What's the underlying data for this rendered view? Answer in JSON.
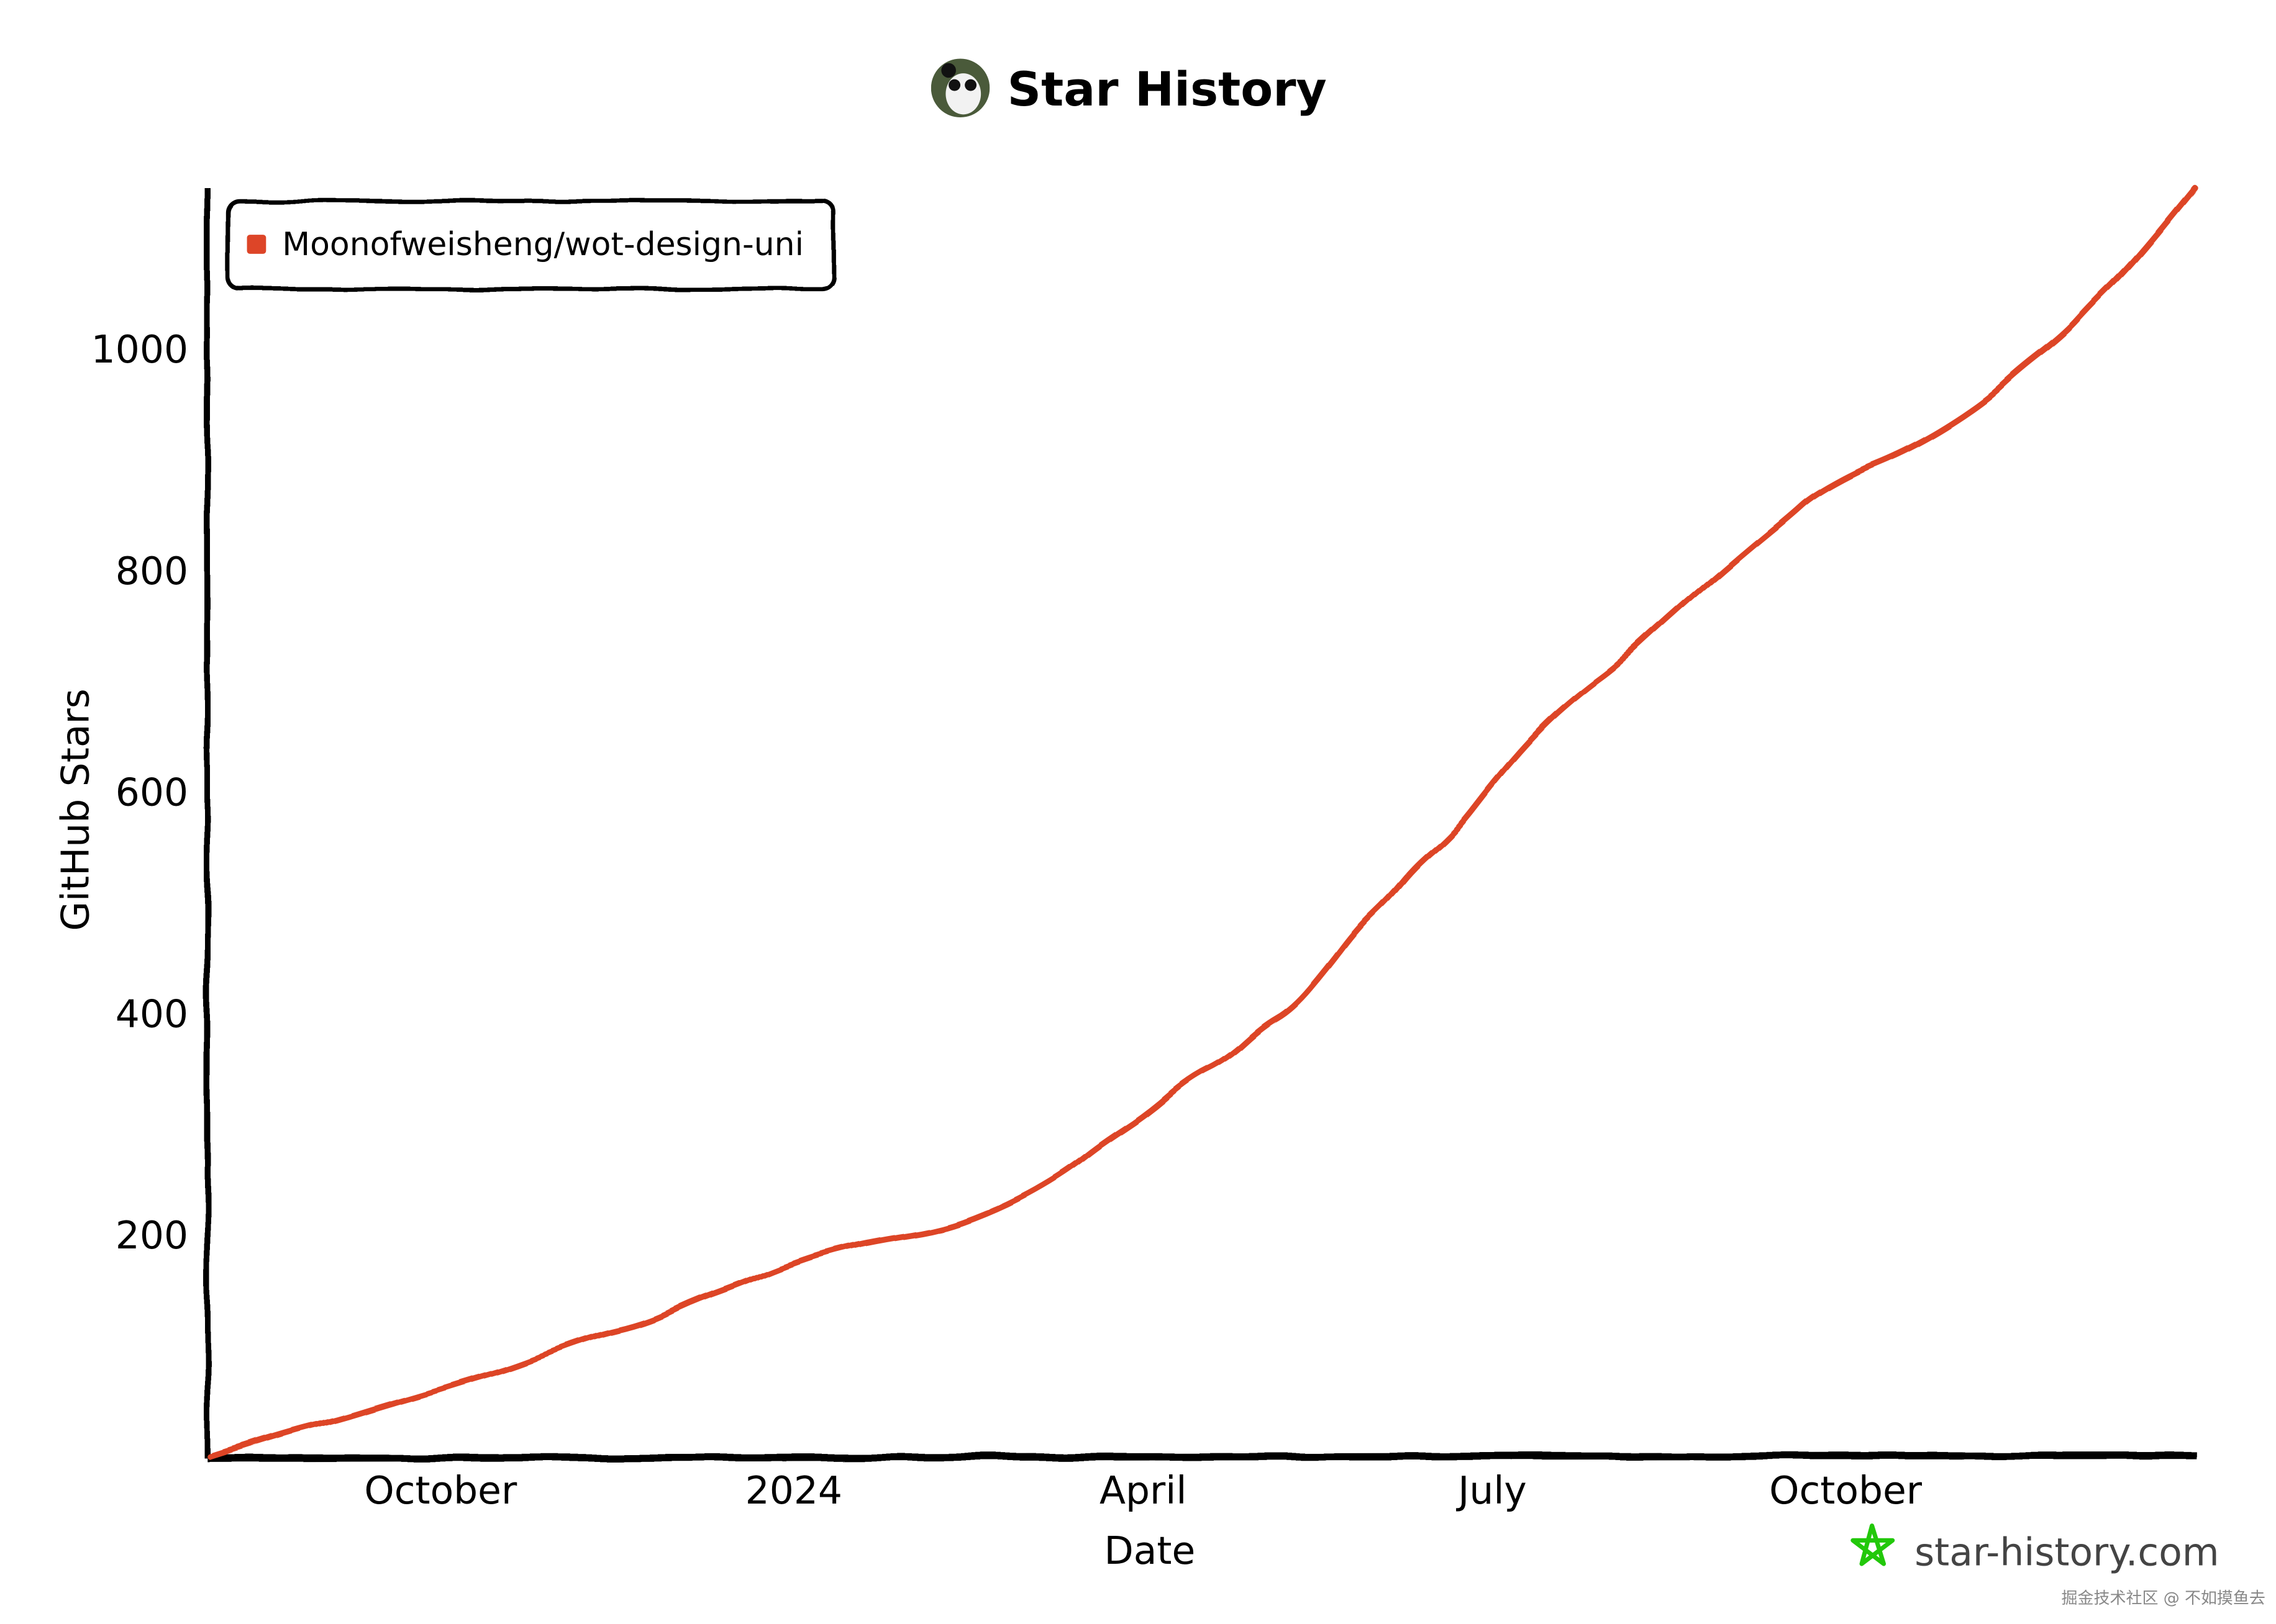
{
  "chart_data": {
    "type": "line",
    "title": "Star History",
    "xlabel": "Date",
    "ylabel": "GitHub Stars",
    "x_tick_labels": [
      {
        "date": "2023-10-01",
        "label": "October"
      },
      {
        "date": "2024-01-01",
        "label": "2024"
      },
      {
        "date": "2024-04-01",
        "label": "April"
      },
      {
        "date": "2024-07-01",
        "label": "July"
      },
      {
        "date": "2024-10-01",
        "label": "October"
      }
    ],
    "y_ticks": [
      200,
      400,
      600,
      800,
      1000
    ],
    "xlim": [
      "2023-08-02",
      "2024-12-31"
    ],
    "ylim": [
      0,
      1146
    ],
    "grid": false,
    "legend_position": "top-left",
    "series": [
      {
        "name": "Moonofweisheng/wot-design-uni",
        "color": "#dd4528",
        "points": [
          [
            "2023-08-02",
            0
          ],
          [
            "2023-08-24",
            24
          ],
          [
            "2023-09-04",
            33
          ],
          [
            "2023-09-16",
            46
          ],
          [
            "2023-09-27",
            57
          ],
          [
            "2023-10-09",
            70
          ],
          [
            "2023-10-20",
            81
          ],
          [
            "2023-11-08",
            107
          ],
          [
            "2023-11-24",
            120
          ],
          [
            "2023-12-05",
            139
          ],
          [
            "2023-12-17",
            154
          ],
          [
            "2024-01-01",
            175
          ],
          [
            "2024-01-12",
            187
          ],
          [
            "2024-01-24",
            196
          ],
          [
            "2024-02-08",
            204
          ],
          [
            "2024-02-20",
            219
          ],
          [
            "2024-03-02",
            237
          ],
          [
            "2024-03-13",
            260
          ],
          [
            "2024-03-21",
            282
          ],
          [
            "2024-04-02",
            309
          ],
          [
            "2024-04-13",
            342
          ],
          [
            "2024-04-23",
            359
          ],
          [
            "2024-05-02",
            388
          ],
          [
            "2024-05-10",
            404
          ],
          [
            "2024-05-19",
            441
          ],
          [
            "2024-05-27",
            478
          ],
          [
            "2024-06-04",
            504
          ],
          [
            "2024-06-11",
            534
          ],
          [
            "2024-06-21",
            563
          ],
          [
            "2024-07-02",
            613
          ],
          [
            "2024-07-14",
            660
          ],
          [
            "2024-07-25",
            693
          ],
          [
            "2024-08-02",
            713
          ],
          [
            "2024-08-13",
            748
          ],
          [
            "2024-08-25",
            785
          ],
          [
            "2024-09-05",
            818
          ],
          [
            "2024-09-17",
            852
          ],
          [
            "2024-09-22",
            868
          ],
          [
            "2024-10-04",
            891
          ],
          [
            "2024-10-14",
            905
          ],
          [
            "2024-10-25",
            925
          ],
          [
            "2024-11-07",
            955
          ],
          [
            "2024-11-15",
            981
          ],
          [
            "2024-11-27",
            1013
          ],
          [
            "2024-12-04",
            1040
          ],
          [
            "2024-12-14",
            1074
          ],
          [
            "2024-12-31",
            1146
          ]
        ]
      }
    ]
  },
  "branding": {
    "site": "star-history.com",
    "logo_color": "#22c80a"
  },
  "watermark": "掘金技术社区 @ 不如摸鱼去"
}
